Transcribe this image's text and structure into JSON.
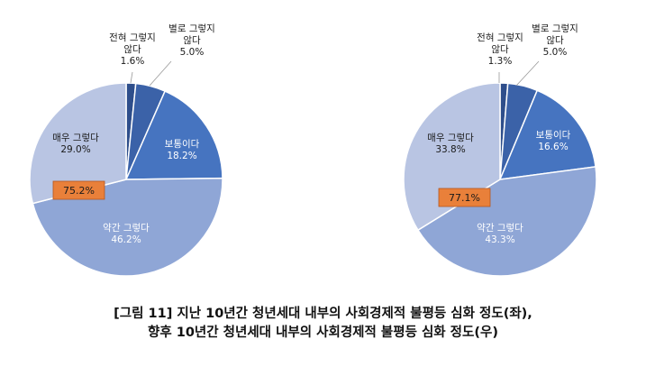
{
  "chart_data": [
    {
      "type": "pie",
      "slices": [
        {
          "label": [
            "전혀 그렇지",
            "않다"
          ],
          "value": 1.6,
          "value_label": "1.6%",
          "color": "#2E4E8B"
        },
        {
          "label": [
            "별로 그렇지",
            "않다"
          ],
          "value": 5.0,
          "value_label": "5.0%",
          "color": "#3B62A8"
        },
        {
          "label": [
            "보통이다"
          ],
          "value": 18.2,
          "value_label": "18.2%",
          "color": "#4674C0"
        },
        {
          "label": [
            "약간 그렇다"
          ],
          "value": 46.2,
          "value_label": "46.2%",
          "color": "#8FA6D6"
        },
        {
          "label": [
            "매우 그렇다"
          ],
          "value": 29.0,
          "value_label": "29.0%",
          "color": "#B9C5E3"
        }
      ],
      "highlight": "75.2%"
    },
    {
      "type": "pie",
      "slices": [
        {
          "label": [
            "전혀 그렇지",
            "않다"
          ],
          "value": 1.3,
          "value_label": "1.3%",
          "color": "#2E4E8B"
        },
        {
          "label": [
            "별로 그렇지",
            "않다"
          ],
          "value": 5.0,
          "value_label": "5.0%",
          "color": "#3B62A8"
        },
        {
          "label": [
            "보통이다"
          ],
          "value": 16.6,
          "value_label": "16.6%",
          "color": "#4674C0"
        },
        {
          "label": [
            "약간 그렇다"
          ],
          "value": 43.3,
          "value_label": "43.3%",
          "color": "#8FA6D6"
        },
        {
          "label": [
            "매우 그렇다"
          ],
          "value": 33.8,
          "value_label": "33.8%",
          "color": "#B9C5E3"
        }
      ],
      "highlight": "77.1%"
    }
  ],
  "caption": {
    "line1": "[그림 11] 지난 10년간 청년세대 내부의 사회경제적 불평등 심화 정도(좌),",
    "line2": "향후 10년간 청년세대 내부의 사회경제적 불평등 심화 정도(우)"
  }
}
